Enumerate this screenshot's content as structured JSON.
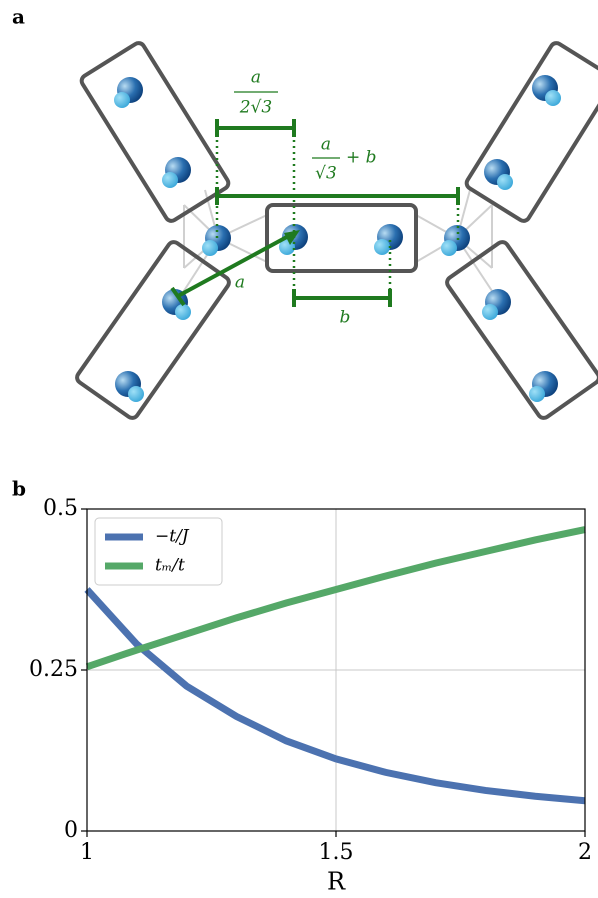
{
  "panel_a": {
    "label": "a",
    "labels": {
      "half_sep": {
        "numerator": "a",
        "denominator": "2√3"
      },
      "total_sep": {
        "numerator": "a",
        "denominator": "√3",
        "suffix": "+ b"
      },
      "a": "a",
      "b": "b"
    }
  },
  "chart_data": {
    "type": "line",
    "panel_label": "b",
    "xlabel": "R",
    "x": [
      1,
      1.1,
      1.2,
      1.3,
      1.4,
      1.5,
      1.6,
      1.7,
      1.8,
      1.9,
      2
    ],
    "series": [
      {
        "name": "−t/J",
        "color": "#4c72b0",
        "values": [
          0.375,
          0.29,
          0.225,
          0.178,
          0.14,
          0.112,
          0.091,
          0.075,
          0.063,
          0.054,
          0.047
        ]
      },
      {
        "name": "tₘ/t",
        "color": "#55a868",
        "values": [
          0.255,
          0.281,
          0.306,
          0.331,
          0.354,
          0.375,
          0.396,
          0.416,
          0.434,
          0.452,
          0.468
        ]
      }
    ],
    "xlim": [
      1,
      2
    ],
    "xticks": [
      1,
      1.5,
      2
    ],
    "ylim": [
      0,
      0.5
    ],
    "yticks": [
      0,
      0.25,
      0.5
    ],
    "grid": true,
    "legend": "upper left"
  }
}
